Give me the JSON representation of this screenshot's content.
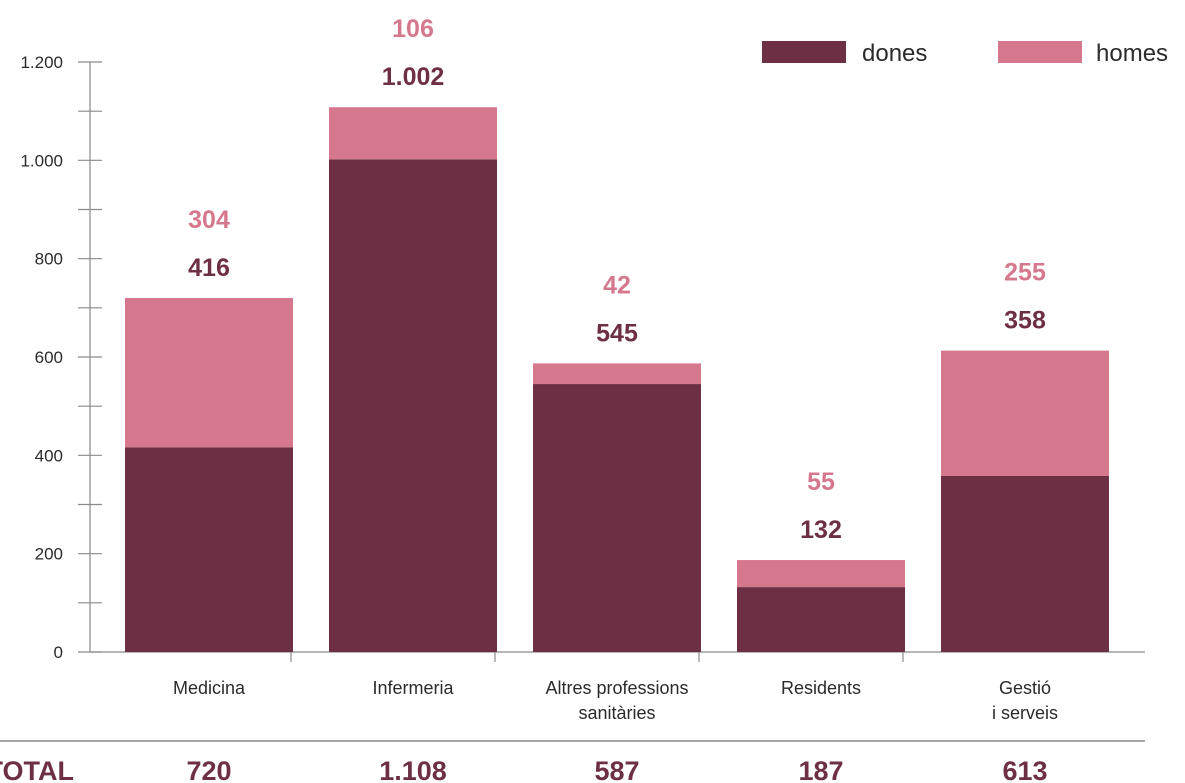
{
  "colors": {
    "dones": "#6d2f44",
    "homes": "#d5788d",
    "axis": "#8a8a8a"
  },
  "chart_data": {
    "type": "bar",
    "stacked": true,
    "categories": [
      [
        "Medicina"
      ],
      [
        "Infermeria"
      ],
      [
        "Altres professions",
        "sanitàries"
      ],
      [
        "Residents"
      ],
      [
        "Gestió",
        "i serveis"
      ]
    ],
    "series": [
      {
        "name": "dones",
        "values": [
          416,
          1002,
          545,
          132,
          358
        ],
        "labels": [
          "416",
          "1.002",
          "545",
          "132",
          "358"
        ]
      },
      {
        "name": "homes",
        "values": [
          304,
          106,
          42,
          55,
          255
        ],
        "labels": [
          "304",
          "106",
          "42",
          "55",
          "255"
        ]
      }
    ],
    "ylim": [
      0,
      1200
    ],
    "yticks": [
      0,
      200,
      400,
      600,
      800,
      1000,
      1200
    ],
    "ytick_labels": [
      "0",
      "200",
      "400",
      "600",
      "800",
      "1.000",
      "1.200"
    ],
    "legend": {
      "position": "top-right",
      "entries": [
        "dones",
        "homes"
      ]
    },
    "totals": {
      "label": "TOTAL",
      "values": [
        "720",
        "1.108",
        "587",
        "187",
        "613"
      ]
    }
  }
}
